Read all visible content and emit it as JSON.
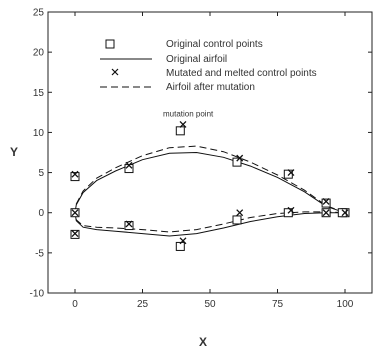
{
  "chart_data": {
    "type": "line",
    "xlabel": "X",
    "ylabel": "Y",
    "xlim": [
      -10,
      110
    ],
    "ylim": [
      -10,
      25
    ],
    "x_ticks": [
      0,
      25,
      50,
      75,
      100
    ],
    "y_ticks": [
      -10,
      -5,
      0,
      5,
      10,
      15,
      20,
      25
    ],
    "grid": false,
    "legend_position": "top-right",
    "legend": [
      {
        "label": "Original control points",
        "marker": "square"
      },
      {
        "label": "Original airfoil",
        "line": "solid"
      },
      {
        "label": "Mutated and melted control points",
        "marker": "x"
      },
      {
        "label": "Airfoil after mutation",
        "line": "dashed"
      }
    ],
    "annotation": {
      "text": "mutation point",
      "x": 40,
      "y": 11
    },
    "series": {
      "original_control_points": [
        {
          "x": 0,
          "y": 4.5
        },
        {
          "x": 0,
          "y": 0
        },
        {
          "x": 0,
          "y": -2.7
        },
        {
          "x": 20,
          "y": 5.5
        },
        {
          "x": 20,
          "y": -1.6
        },
        {
          "x": 39,
          "y": 10.2
        },
        {
          "x": 39,
          "y": -4.2
        },
        {
          "x": 60,
          "y": 6.3
        },
        {
          "x": 60,
          "y": -0.9
        },
        {
          "x": 79,
          "y": 4.8
        },
        {
          "x": 79,
          "y": 0
        },
        {
          "x": 93,
          "y": 1.2
        },
        {
          "x": 93,
          "y": 0
        },
        {
          "x": 100,
          "y": 0
        },
        {
          "x": 99,
          "y": 0
        }
      ],
      "mutated_control_points": [
        {
          "x": 0,
          "y": 4.8
        },
        {
          "x": 0,
          "y": 0
        },
        {
          "x": 0,
          "y": -2.6
        },
        {
          "x": 20,
          "y": 5.9
        },
        {
          "x": 20,
          "y": -1.4
        },
        {
          "x": 40,
          "y": 11
        },
        {
          "x": 40,
          "y": -3.5
        },
        {
          "x": 61,
          "y": 6.8
        },
        {
          "x": 61,
          "y": 0
        },
        {
          "x": 80,
          "y": 5
        },
        {
          "x": 80,
          "y": 0.3
        },
        {
          "x": 93,
          "y": 1.4
        },
        {
          "x": 93,
          "y": 0
        },
        {
          "x": 100,
          "y": 0
        }
      ],
      "original_airfoil": [
        {
          "x": 100,
          "y": 0
        },
        {
          "x": 93,
          "y": 0.8
        },
        {
          "x": 85,
          "y": 2.6
        },
        {
          "x": 75,
          "y": 4.4
        },
        {
          "x": 65,
          "y": 5.8
        },
        {
          "x": 55,
          "y": 6.9
        },
        {
          "x": 45,
          "y": 7.5
        },
        {
          "x": 35,
          "y": 7.4
        },
        {
          "x": 25,
          "y": 6.6
        },
        {
          "x": 15,
          "y": 5.2
        },
        {
          "x": 8,
          "y": 4
        },
        {
          "x": 3,
          "y": 2.5
        },
        {
          "x": 0.5,
          "y": 1
        },
        {
          "x": 0,
          "y": 0
        },
        {
          "x": 0.5,
          "y": -1
        },
        {
          "x": 3,
          "y": -1.8
        },
        {
          "x": 8,
          "y": -2.1
        },
        {
          "x": 15,
          "y": -2.3
        },
        {
          "x": 25,
          "y": -2.6
        },
        {
          "x": 35,
          "y": -2.9
        },
        {
          "x": 45,
          "y": -2.6
        },
        {
          "x": 55,
          "y": -1.9
        },
        {
          "x": 65,
          "y": -1.1
        },
        {
          "x": 75,
          "y": -0.5
        },
        {
          "x": 85,
          "y": -0.1
        },
        {
          "x": 93,
          "y": 0
        },
        {
          "x": 100,
          "y": 0
        }
      ],
      "airfoil_after_mutation": [
        {
          "x": 100,
          "y": 0
        },
        {
          "x": 93,
          "y": 0.9
        },
        {
          "x": 85,
          "y": 2.8
        },
        {
          "x": 75,
          "y": 4.7
        },
        {
          "x": 65,
          "y": 6.3
        },
        {
          "x": 55,
          "y": 7.6
        },
        {
          "x": 45,
          "y": 8.3
        },
        {
          "x": 35,
          "y": 8.1
        },
        {
          "x": 25,
          "y": 7.1
        },
        {
          "x": 15,
          "y": 5.6
        },
        {
          "x": 8,
          "y": 4.3
        },
        {
          "x": 3,
          "y": 2.7
        },
        {
          "x": 0.5,
          "y": 1.1
        },
        {
          "x": 0,
          "y": 0
        },
        {
          "x": 0.5,
          "y": -0.9
        },
        {
          "x": 3,
          "y": -1.6
        },
        {
          "x": 8,
          "y": -1.8
        },
        {
          "x": 15,
          "y": -1.9
        },
        {
          "x": 25,
          "y": -2.1
        },
        {
          "x": 35,
          "y": -2.4
        },
        {
          "x": 45,
          "y": -2.1
        },
        {
          "x": 55,
          "y": -1.4
        },
        {
          "x": 65,
          "y": -0.6
        },
        {
          "x": 75,
          "y": -0.1
        },
        {
          "x": 85,
          "y": 0.1
        },
        {
          "x": 93,
          "y": 0.1
        },
        {
          "x": 100,
          "y": 0
        }
      ]
    }
  }
}
